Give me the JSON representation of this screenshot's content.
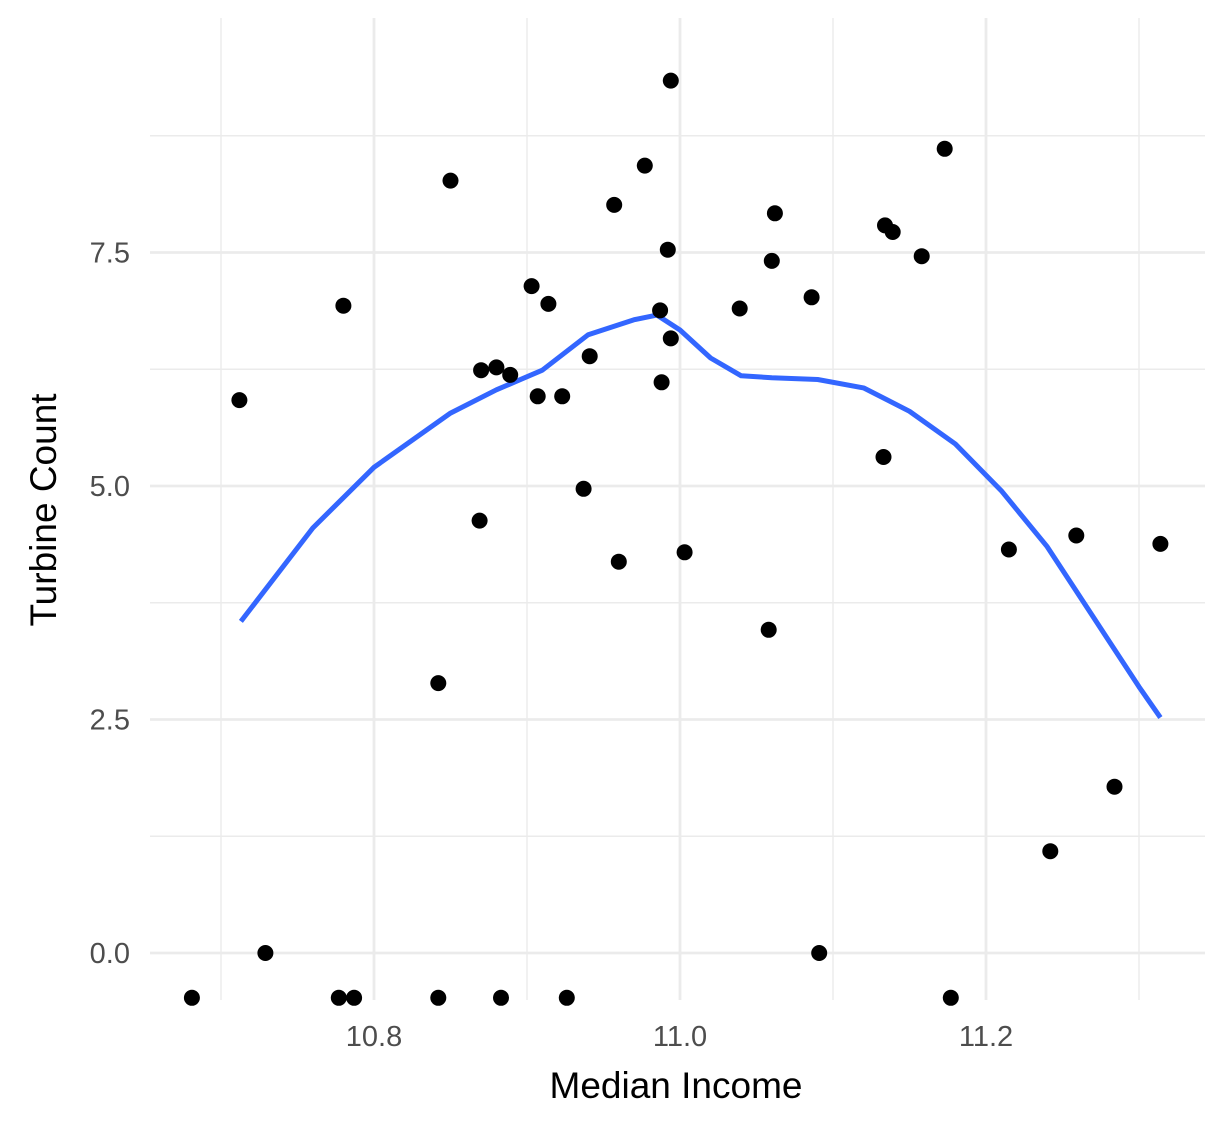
{
  "chart_data": {
    "type": "scatter",
    "title": "",
    "xlabel": "Median Income",
    "ylabel": "Turbine Count",
    "xlim": [
      10.65,
      11.33
    ],
    "ylim": [
      -0.3,
      9.8
    ],
    "x_ticks": [
      10.8,
      11.0,
      11.2
    ],
    "x_tick_labels": [
      "10.8",
      "11.0",
      "11.2"
    ],
    "x_minor_ticks": [
      10.7,
      10.9,
      11.1,
      11.3
    ],
    "y_ticks": [
      0,
      2.5,
      5,
      7.5
    ],
    "y_tick_labels": [
      "0.0",
      "2.5",
      "5.0",
      "7.5"
    ],
    "y_minor_ticks": [
      1.25,
      3.75,
      6.25,
      8.75
    ],
    "grid": true,
    "colors": {
      "points": "#000000",
      "smooth": "#3366ff",
      "grid": "#ebebeb"
    },
    "points": [
      {
        "x": 10.681,
        "y": -0.48
      },
      {
        "x": 10.712,
        "y": 5.92
      },
      {
        "x": 10.729,
        "y": 0.0
      },
      {
        "x": 10.777,
        "y": -0.48
      },
      {
        "x": 10.78,
        "y": 6.93
      },
      {
        "x": 10.787,
        "y": -0.48
      },
      {
        "x": 10.842,
        "y": 2.89
      },
      {
        "x": 10.842,
        "y": -0.48
      },
      {
        "x": 10.85,
        "y": 8.27
      },
      {
        "x": 10.869,
        "y": 4.63
      },
      {
        "x": 10.87,
        "y": 6.24
      },
      {
        "x": 10.88,
        "y": 6.27
      },
      {
        "x": 10.883,
        "y": -0.48
      },
      {
        "x": 10.889,
        "y": 6.19
      },
      {
        "x": 10.903,
        "y": 7.14
      },
      {
        "x": 10.907,
        "y": 5.96
      },
      {
        "x": 10.914,
        "y": 6.95
      },
      {
        "x": 10.923,
        "y": 5.96
      },
      {
        "x": 10.926,
        "y": -0.48
      },
      {
        "x": 10.937,
        "y": 4.97
      },
      {
        "x": 10.941,
        "y": 6.39
      },
      {
        "x": 10.957,
        "y": 8.01
      },
      {
        "x": 10.96,
        "y": 4.19
      },
      {
        "x": 10.977,
        "y": 8.43
      },
      {
        "x": 10.987,
        "y": 6.88
      },
      {
        "x": 10.988,
        "y": 6.11
      },
      {
        "x": 10.992,
        "y": 7.53
      },
      {
        "x": 10.994,
        "y": 6.58
      },
      {
        "x": 10.994,
        "y": 9.34
      },
      {
        "x": 11.003,
        "y": 4.29
      },
      {
        "x": 11.039,
        "y": 6.9
      },
      {
        "x": 11.058,
        "y": 3.46
      },
      {
        "x": 11.06,
        "y": 7.41
      },
      {
        "x": 11.062,
        "y": 7.92
      },
      {
        "x": 11.086,
        "y": 7.02
      },
      {
        "x": 11.091,
        "y": 0.0
      },
      {
        "x": 11.133,
        "y": 5.31
      },
      {
        "x": 11.134,
        "y": 7.79
      },
      {
        "x": 11.139,
        "y": 7.72
      },
      {
        "x": 11.158,
        "y": 7.46
      },
      {
        "x": 11.173,
        "y": 8.61
      },
      {
        "x": 11.177,
        "y": -0.48
      },
      {
        "x": 11.215,
        "y": 4.32
      },
      {
        "x": 11.242,
        "y": 1.09
      },
      {
        "x": 11.259,
        "y": 4.47
      },
      {
        "x": 11.284,
        "y": 1.78
      },
      {
        "x": 11.314,
        "y": 4.38
      }
    ],
    "smooth_line": {
      "x": [
        10.713,
        10.76,
        10.8,
        10.85,
        10.88,
        10.91,
        10.94,
        10.97,
        10.985,
        11.0,
        11.02,
        11.04,
        11.06,
        11.09,
        11.12,
        11.15,
        11.18,
        11.21,
        11.24,
        11.27,
        11.3,
        11.314
      ],
      "y": [
        3.55,
        4.55,
        5.2,
        5.78,
        6.03,
        6.24,
        6.62,
        6.78,
        6.83,
        6.67,
        6.37,
        6.18,
        6.16,
        6.14,
        6.05,
        5.8,
        5.45,
        4.95,
        4.35,
        3.6,
        2.85,
        2.52
      ]
    }
  }
}
